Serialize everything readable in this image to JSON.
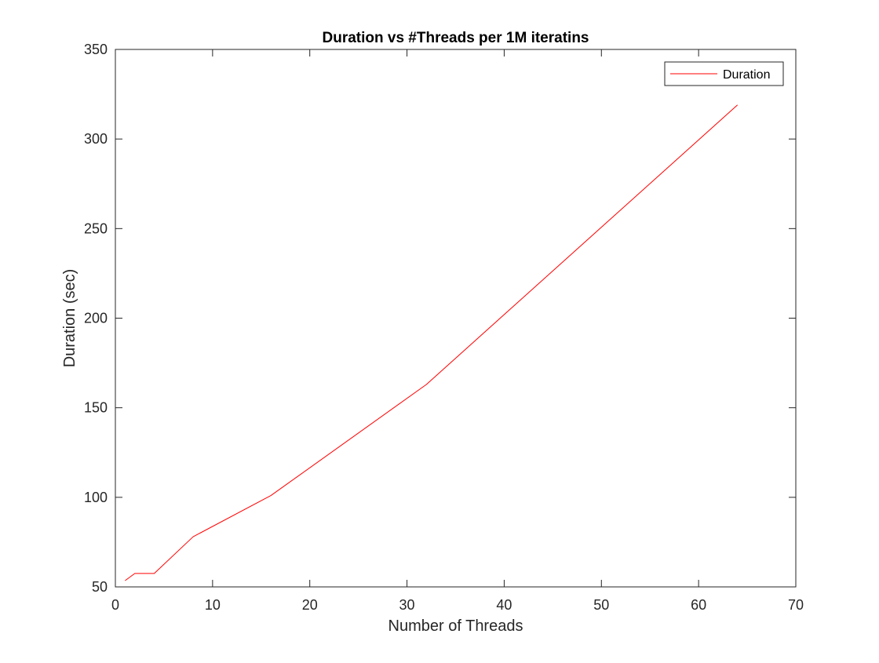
{
  "chart_data": {
    "type": "line",
    "title": "Duration vs #Threads per 1M iteratins",
    "xlabel": "Number of Threads",
    "ylabel": "Duration (sec)",
    "xlim": [
      0,
      70
    ],
    "ylim": [
      50,
      350
    ],
    "xticks": [
      0,
      10,
      20,
      30,
      40,
      50,
      60,
      70
    ],
    "yticks": [
      50,
      100,
      150,
      200,
      250,
      300,
      350
    ],
    "grid": false,
    "legend_position": "top-right",
    "series": [
      {
        "name": "Duration",
        "color": "#ff0000",
        "x": [
          1,
          2,
          4,
          8,
          16,
          32,
          64
        ],
        "y": [
          53.5,
          57.5,
          57.5,
          78,
          101,
          163,
          319
        ]
      }
    ]
  }
}
